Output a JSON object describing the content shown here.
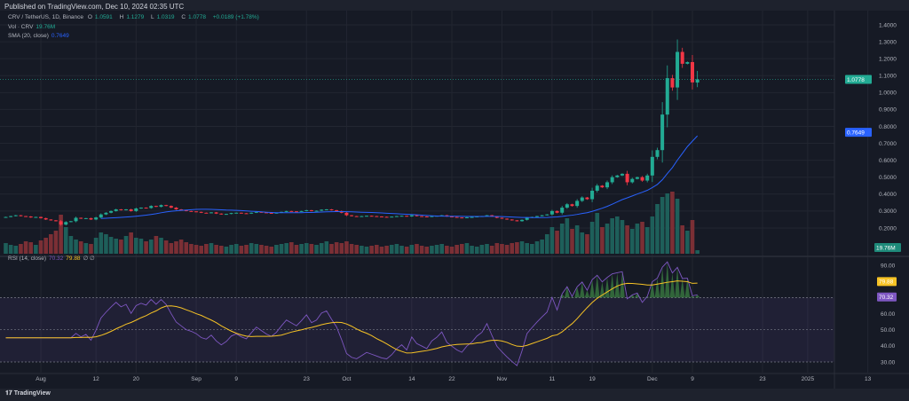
{
  "header": {
    "published": "Published on TradingView.com, Dec 10, 2024 02:35 UTC"
  },
  "legend": {
    "symbol": "CRV / TetherUS, 1D, Binance",
    "o_label": "O",
    "o": "1.0591",
    "h_label": "H",
    "h": "1.1279",
    "l_label": "L",
    "l": "1.0319",
    "c_label": "C",
    "c": "1.0778",
    "change": "+0.0189 (+1.78%)",
    "vol_label": "Vol · CRV",
    "vol": "19.76M",
    "sma_label": "SMA (20, close)",
    "sma": "0.7649",
    "rsi_label": "RSI (14, close)",
    "rsi": "70.32",
    "rsi_sma": "79.88",
    "rsi_extra": "∅ ∅"
  },
  "footer": {
    "logo_text": "TradingView"
  },
  "colors": {
    "background": "#161a25",
    "up": "#22ab94",
    "down": "#f23645",
    "volume_up": "#1e5f5a",
    "volume_down": "#7b2f35",
    "sma": "#2962ff",
    "rsi": "#7e57c2",
    "rsi_sma": "#f7c325",
    "overbought_fill": "#4caf50"
  },
  "chart_data": [
    {
      "type": "candlestick",
      "pane": "price",
      "start_date": "2024-07-25",
      "interval": "1D",
      "close": [
        0.265,
        0.27,
        0.275,
        0.27,
        0.268,
        0.262,
        0.265,
        0.258,
        0.25,
        0.245,
        0.24,
        0.22,
        0.235,
        0.24,
        0.26,
        0.255,
        0.258,
        0.25,
        0.262,
        0.28,
        0.29,
        0.3,
        0.31,
        0.305,
        0.31,
        0.3,
        0.315,
        0.32,
        0.318,
        0.33,
        0.325,
        0.335,
        0.33,
        0.32,
        0.31,
        0.305,
        0.3,
        0.298,
        0.295,
        0.29,
        0.288,
        0.292,
        0.285,
        0.28,
        0.283,
        0.288,
        0.29,
        0.287,
        0.285,
        0.29,
        0.295,
        0.292,
        0.289,
        0.287,
        0.29,
        0.295,
        0.3,
        0.298,
        0.296,
        0.3,
        0.305,
        0.3,
        0.302,
        0.308,
        0.31,
        0.305,
        0.3,
        0.29,
        0.275,
        0.27,
        0.268,
        0.27,
        0.272,
        0.27,
        0.268,
        0.266,
        0.265,
        0.267,
        0.27,
        0.272,
        0.268,
        0.275,
        0.27,
        0.268,
        0.266,
        0.27,
        0.272,
        0.275,
        0.268,
        0.265,
        0.262,
        0.26,
        0.263,
        0.265,
        0.268,
        0.27,
        0.275,
        0.268,
        0.26,
        0.255,
        0.25,
        0.245,
        0.24,
        0.248,
        0.26,
        0.265,
        0.27,
        0.275,
        0.28,
        0.3,
        0.29,
        0.32,
        0.34,
        0.33,
        0.36,
        0.38,
        0.37,
        0.42,
        0.45,
        0.44,
        0.47,
        0.5,
        0.51,
        0.52,
        0.47,
        0.49,
        0.5,
        0.48,
        0.51,
        0.62,
        0.66,
        0.87,
        1.085,
        1.03,
        1.24,
        1.17,
        1.18,
        1.06,
        1.0778
      ],
      "last_ohlc": {
        "open": 1.0591,
        "high": 1.1279,
        "low": 1.0319,
        "close": 1.0778
      },
      "y_ticks": [
        0.2,
        0.3,
        0.4,
        0.5,
        0.6,
        0.7,
        0.8,
        0.9,
        1.0,
        1.1,
        1.2,
        1.3,
        1.4
      ],
      "ylim": [
        0.13,
        1.43
      ],
      "overlay": "SMA 20",
      "sma_last": 0.7649,
      "price_tag": "1.0778",
      "sma_tag": "0.7649"
    },
    {
      "type": "bar",
      "pane": "volume",
      "unit": "M",
      "values": [
        60,
        50,
        45,
        55,
        70,
        65,
        50,
        75,
        90,
        110,
        130,
        220,
        150,
        100,
        80,
        70,
        60,
        55,
        90,
        120,
        110,
        95,
        85,
        80,
        100,
        120,
        90,
        85,
        70,
        80,
        100,
        90,
        75,
        60,
        70,
        80,
        65,
        55,
        50,
        45,
        55,
        60,
        50,
        45,
        40,
        50,
        55,
        45,
        50,
        60,
        55,
        50,
        45,
        40,
        50,
        55,
        60,
        65,
        50,
        55,
        60,
        55,
        50,
        60,
        70,
        55,
        65,
        60,
        70,
        55,
        50,
        45,
        40,
        45,
        50,
        40,
        45,
        50,
        55,
        45,
        40,
        50,
        55,
        45,
        40,
        45,
        50,
        55,
        45,
        40,
        50,
        55,
        60,
        45,
        40,
        50,
        55,
        45,
        60,
        55,
        50,
        60,
        65,
        70,
        60,
        55,
        70,
        80,
        110,
        150,
        130,
        170,
        200,
        140,
        160,
        120,
        110,
        180,
        230,
        150,
        170,
        200,
        210,
        190,
        160,
        140,
        170,
        180,
        150,
        210,
        280,
        320,
        340,
        350,
        310,
        160,
        130,
        190,
        19.76
      ],
      "tag": "19.76M"
    },
    {
      "type": "line",
      "pane": "rsi",
      "series": [
        "RSI 14",
        "SMA 14 of RSI"
      ],
      "y_ticks": [
        30,
        40,
        50,
        60,
        70,
        80,
        90
      ],
      "ylim": [
        25,
        95
      ],
      "bands": [
        30,
        50,
        70
      ],
      "rsi_tag": "70.32",
      "rsi_sma_tag": "79.88",
      "y_tick_labels": [
        "30.00",
        "40.00",
        "50.00",
        "60.00",
        "70.00",
        "80.00",
        "90.00"
      ]
    },
    {
      "type": "time_axis",
      "labels": [
        {
          "text": "Aug",
          "date": "2024-08-01"
        },
        {
          "text": "12",
          "date": "2024-08-12"
        },
        {
          "text": "20",
          "date": "2024-08-20"
        },
        {
          "text": "Sep",
          "date": "2024-09-01"
        },
        {
          "text": "9",
          "date": "2024-09-09"
        },
        {
          "text": "23",
          "date": "2024-09-23"
        },
        {
          "text": "Oct",
          "date": "2024-10-01"
        },
        {
          "text": "14",
          "date": "2024-10-14"
        },
        {
          "text": "22",
          "date": "2024-10-22"
        },
        {
          "text": "Nov",
          "date": "2024-11-01"
        },
        {
          "text": "11",
          "date": "2024-11-11"
        },
        {
          "text": "19",
          "date": "2024-11-19"
        },
        {
          "text": "Dec",
          "date": "2024-12-01"
        },
        {
          "text": "9",
          "date": "2024-12-09"
        },
        {
          "text": "23",
          "date": "2024-12-23"
        },
        {
          "text": "2025",
          "date": "2025-01-01"
        },
        {
          "text": "13",
          "date": "2025-01-13"
        }
      ]
    }
  ]
}
